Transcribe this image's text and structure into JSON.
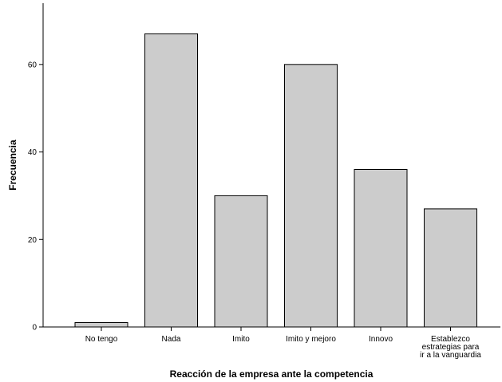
{
  "chart_data": {
    "type": "bar",
    "categories": [
      "No tengo",
      "Nada",
      "Imito",
      "Imito y mejoro",
      "Innovo",
      "Establezco estrategias para ir a la vanguardia"
    ],
    "category_label_lines": [
      [
        "No tengo"
      ],
      [
        "Nada"
      ],
      [
        "Imito"
      ],
      [
        "Imito y mejoro"
      ],
      [
        "Innovo"
      ],
      [
        "Establezco",
        "estrategias para",
        "ir a la vanguardia"
      ]
    ],
    "values": [
      1,
      67,
      30,
      60,
      36,
      27
    ],
    "xlabel": "Reacción de la empresa ante la competencia",
    "ylabel": "Frecuencia",
    "yticks": [
      0,
      20,
      40,
      60
    ],
    "ylim": [
      0,
      72
    ],
    "bar_color": "#cccccc",
    "bar_edge_color": "#000000",
    "grid": false,
    "legend": "none"
  }
}
